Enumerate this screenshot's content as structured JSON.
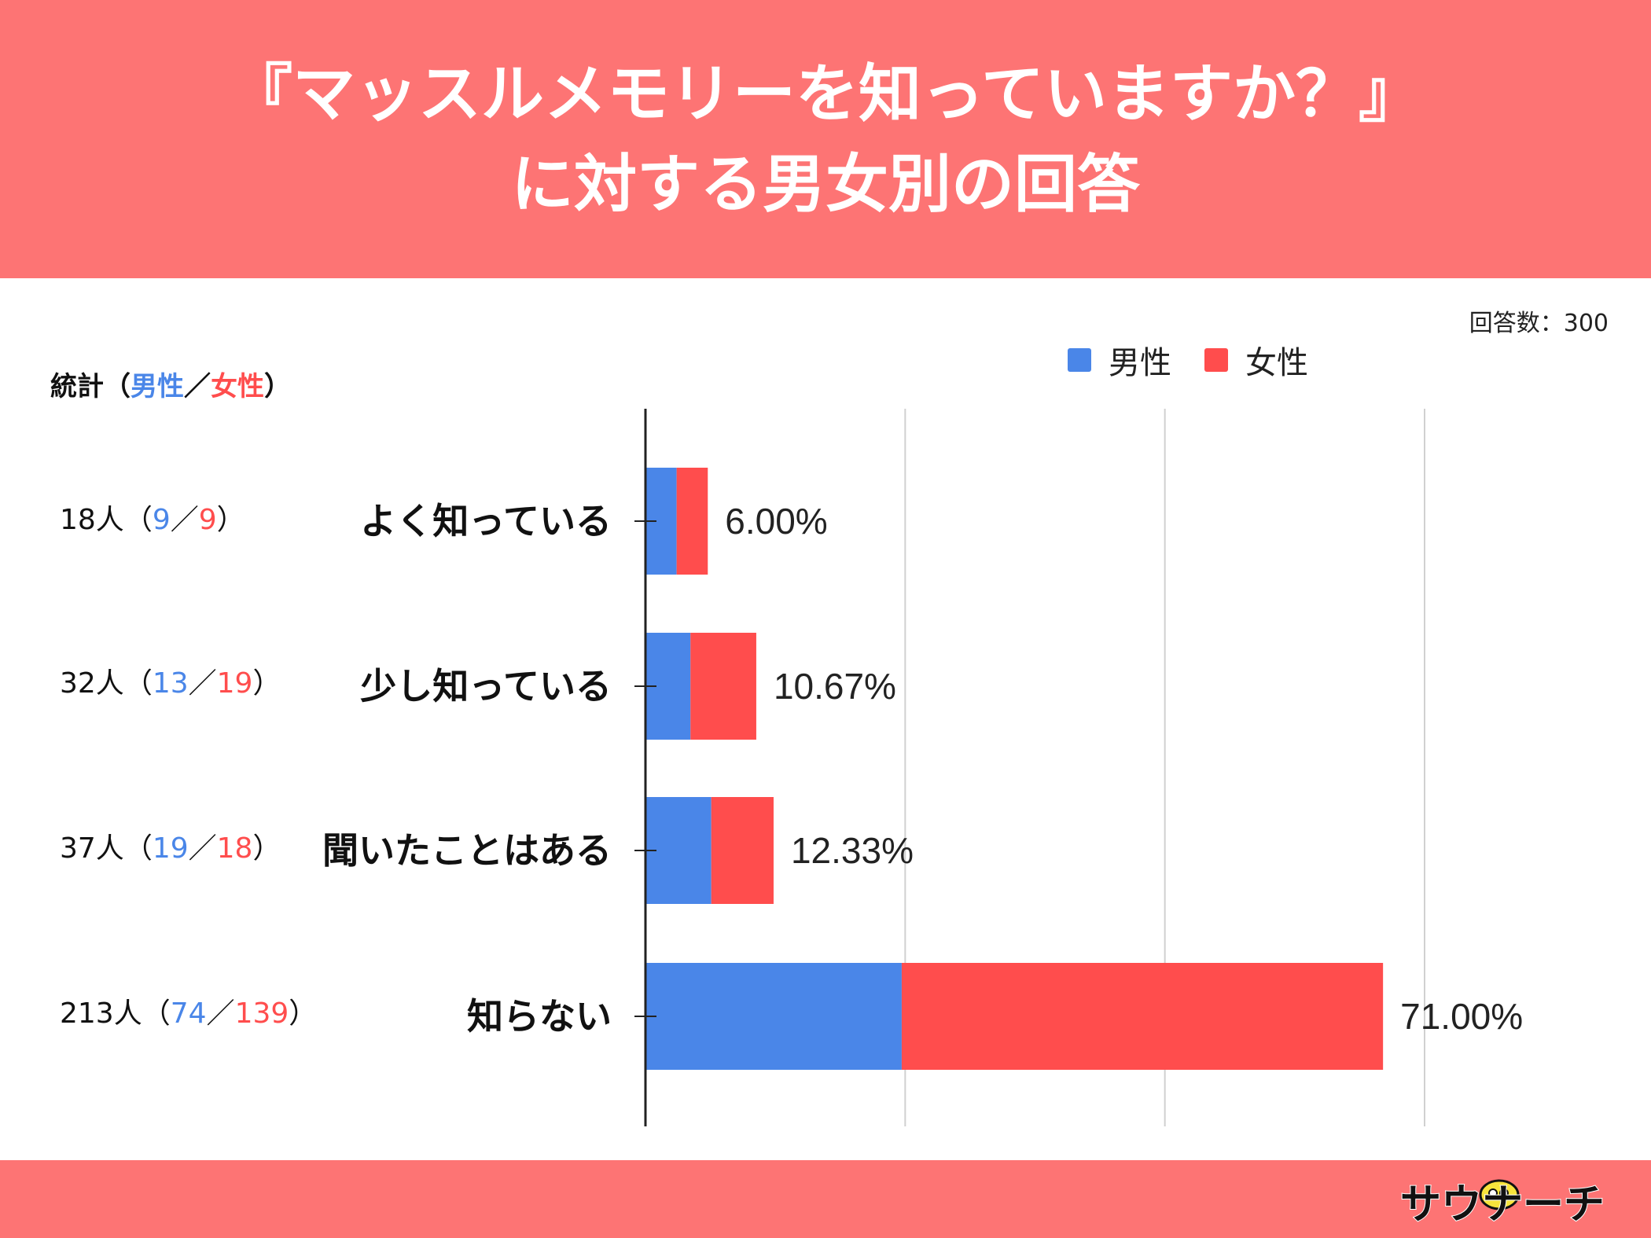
{
  "title": {
    "line1": "『マッスルメモリーを知っていますか？』",
    "line2": "に対する男女別の回答"
  },
  "total_label": "回答数：300",
  "stats_header": {
    "prefix": "統計（",
    "male": "男性",
    "sep": "／",
    "female": "女性",
    "suffix": "）"
  },
  "stats": [
    {
      "total": "18人",
      "male": "9",
      "female": "9"
    },
    {
      "total": "32人",
      "male": "13",
      "female": "19"
    },
    {
      "total": "37人",
      "male": "19",
      "female": "18"
    },
    {
      "total": "213人",
      "male": "74",
      "female": "139"
    }
  ],
  "logo_text": "サウナーチ",
  "colors": {
    "male": "#4a86e8",
    "female": "#ff4d4d",
    "header": "#fd7474"
  },
  "chart_data": {
    "type": "bar",
    "orientation": "horizontal",
    "stacked": true,
    "categories": [
      "よく知っている",
      "少し知っている",
      "聞いたことはある",
      "知らない"
    ],
    "series": [
      {
        "name": "男性",
        "values": [
          9,
          13,
          19,
          74
        ]
      },
      {
        "name": "女性",
        "values": [
          9,
          19,
          18,
          139
        ]
      }
    ],
    "data_labels": [
      "6.00%",
      "10.67%",
      "12.33%",
      "71.00%"
    ],
    "xlim": [
      0,
      225
    ],
    "grid": true,
    "legend": "top-right"
  }
}
